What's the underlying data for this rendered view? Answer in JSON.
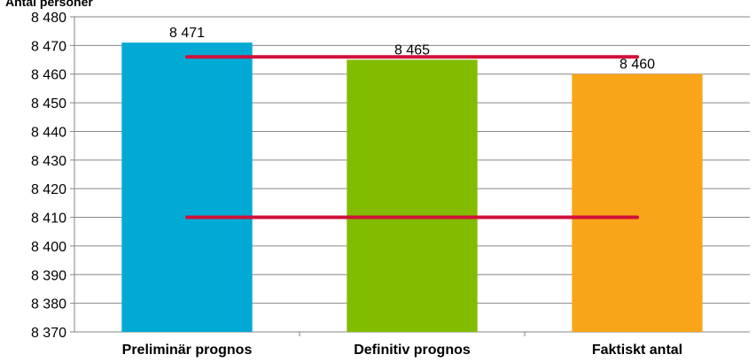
{
  "chart_data": {
    "type": "bar",
    "ylabel": "Antal personer",
    "categories": [
      "Preliminär prognos",
      "Definitiv prognos",
      "Faktiskt antal"
    ],
    "values": [
      8471,
      8465,
      8460
    ],
    "value_labels": [
      "8 471",
      "8 465",
      "8 460"
    ],
    "bar_colors": [
      "#00AAD4",
      "#82BC00",
      "#F9A51A"
    ],
    "ylim": [
      8370,
      8480
    ],
    "ytick_step": 10,
    "ytick_labels": [
      "8 370",
      "8 380",
      "8 390",
      "8 400",
      "8 410",
      "8 420",
      "8 430",
      "8 440",
      "8 450",
      "8 460",
      "8 470",
      "8 480"
    ],
    "grid": true,
    "reference_lines": [
      {
        "value": 8466,
        "color": "#D0103A"
      },
      {
        "value": 8410,
        "color": "#D0103A"
      }
    ]
  }
}
